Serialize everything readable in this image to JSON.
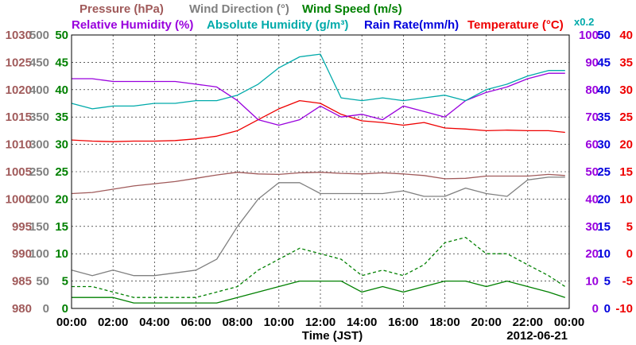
{
  "chart_data": {
    "type": "line",
    "date": "2012-06-21",
    "xlabel": "Time (JST)",
    "x_ticks": [
      "00:00",
      "02:00",
      "04:00",
      "06:00",
      "08:00",
      "10:00",
      "12:00",
      "14:00",
      "16:00",
      "18:00",
      "20:00",
      "22:00",
      "00:00"
    ],
    "grid": true,
    "axes": [
      {
        "id": "pressure",
        "label": "Pressure (hPa)",
        "color": "#A05A5A",
        "ticks": [
          "980",
          "985",
          "990",
          "995",
          "1000",
          "1005",
          "1010",
          "1015",
          "1020",
          "1025",
          "1030"
        ],
        "range": [
          980,
          1030
        ]
      },
      {
        "id": "wind_dir",
        "label": "Wind Direction (°)",
        "color": "#808080",
        "ticks": [
          "0",
          "50",
          "100",
          "150",
          "200",
          "250",
          "300",
          "350",
          "400",
          "450",
          "500"
        ],
        "range": [
          0,
          500
        ]
      },
      {
        "id": "wind_speed",
        "label": "Wind Speed (m/s)",
        "color": "#008000",
        "ticks": [
          "0",
          "5",
          "10",
          "15",
          "20",
          "25",
          "30",
          "35",
          "40",
          "45",
          "50"
        ],
        "range": [
          0,
          50
        ]
      },
      {
        "id": "humidity",
        "label": "Relative Humidity (%)",
        "color": "#9900DD",
        "ticks": [
          "0",
          "10",
          "20",
          "30",
          "40",
          "50",
          "60",
          "70",
          "80",
          "90",
          "100"
        ],
        "range": [
          0,
          100
        ]
      },
      {
        "id": "abs_humidity",
        "label": "Absolute Humidity (g/m³)",
        "note": "x0.2",
        "color": "#00AAAA",
        "range": [
          0,
          100
        ]
      },
      {
        "id": "rain",
        "label": "Rain Rate(mm/h)",
        "color": "#0000DD",
        "ticks": [
          "0",
          "5",
          "10",
          "15",
          "20",
          "25",
          "30",
          "35",
          "40",
          "45",
          "50"
        ],
        "range": [
          0,
          50
        ]
      },
      {
        "id": "temp",
        "label": "Temperature (°C)",
        "color": "#EE0000",
        "ticks": [
          "-10",
          "-5",
          "0",
          "5",
          "10",
          "15",
          "20",
          "25",
          "30",
          "35",
          "40"
        ],
        "range": [
          -10,
          40
        ]
      }
    ],
    "legend": {
      "row1": [
        {
          "text": "Pressure (hPa)",
          "color": "#A05A5A"
        },
        {
          "text": "Wind Direction (°)",
          "color": "#808080"
        },
        {
          "text": "Wind Speed (m/s)",
          "color": "#008000"
        }
      ],
      "row2": [
        {
          "text": "Relative Humidity (%)",
          "color": "#9900DD"
        },
        {
          "text": "Absolute Humidity (g/m³)",
          "color": "#00AAAA"
        },
        {
          "text": "Rain Rate(mm/h)",
          "color": "#0000DD"
        },
        {
          "text": "Temperature (°C)",
          "color": "#EE0000"
        }
      ],
      "abs_scale_note": "x0.2"
    },
    "x_hours": [
      0,
      1,
      2,
      3,
      4,
      5,
      6,
      7,
      8,
      9,
      10,
      11,
      12,
      13,
      14,
      15,
      16,
      17,
      18,
      19,
      20,
      21,
      22,
      23,
      23.8
    ],
    "series": [
      {
        "name": "Temperature",
        "axis": "temp",
        "color": "#EE0000",
        "values": [
          20.8,
          20.6,
          20.5,
          20.6,
          20.6,
          20.7,
          21.0,
          21.5,
          22.5,
          24.5,
          26.5,
          28.0,
          27.5,
          25.5,
          24.3,
          24.0,
          23.5,
          24.0,
          23.0,
          22.8,
          22.5,
          22.6,
          22.5,
          22.5,
          22.2
        ]
      },
      {
        "name": "Relative Humidity",
        "axis": "humidity",
        "color": "#9900DD",
        "values": [
          84,
          84,
          83,
          83,
          83,
          83,
          82,
          81,
          76,
          69,
          67,
          69,
          74,
          70,
          71,
          69,
          74,
          72,
          70,
          76,
          79,
          81,
          84,
          86,
          86
        ]
      },
      {
        "name": "Absolute Humidity",
        "axis": "abs_humidity",
        "color": "#00AAAA",
        "values": [
          75,
          73,
          74,
          74,
          75,
          75,
          76,
          76,
          78,
          82,
          88,
          92,
          93,
          77,
          76,
          77,
          76,
          77,
          78,
          76,
          80,
          82,
          85,
          87,
          87
        ]
      },
      {
        "name": "Pressure",
        "axis": "pressure",
        "color": "#A05A5A",
        "values": [
          1001.0,
          1001.2,
          1001.8,
          1002.4,
          1002.8,
          1003.2,
          1003.8,
          1004.4,
          1004.9,
          1004.6,
          1004.5,
          1004.8,
          1004.9,
          1004.7,
          1004.6,
          1004.8,
          1004.6,
          1004.3,
          1003.7,
          1003.8,
          1004.2,
          1004.2,
          1004.2,
          1004.5,
          1004.3
        ]
      },
      {
        "name": "Wind Direction",
        "axis": "wind_dir",
        "color": "#808080",
        "values": [
          70,
          60,
          70,
          60,
          60,
          65,
          70,
          90,
          150,
          200,
          230,
          230,
          210,
          210,
          210,
          210,
          215,
          205,
          205,
          220,
          210,
          205,
          235,
          240,
          240
        ]
      },
      {
        "name": "Wind Speed",
        "axis": "wind_speed",
        "color": "#008000",
        "values": [
          2,
          2,
          2,
          1,
          1,
          1,
          1,
          1,
          2,
          3,
          4,
          5,
          5,
          5,
          3,
          4,
          3,
          4,
          5,
          5,
          4,
          5,
          4,
          3,
          2
        ]
      },
      {
        "name": "Wind Speed Gust",
        "axis": "wind_speed",
        "color": "#008000",
        "dashed": true,
        "values": [
          4,
          4,
          3,
          2,
          2,
          2,
          2,
          3,
          4,
          7,
          9,
          11,
          10,
          9,
          6,
          7,
          6,
          8,
          12,
          13,
          10,
          10,
          8,
          6,
          4
        ]
      }
    ]
  }
}
